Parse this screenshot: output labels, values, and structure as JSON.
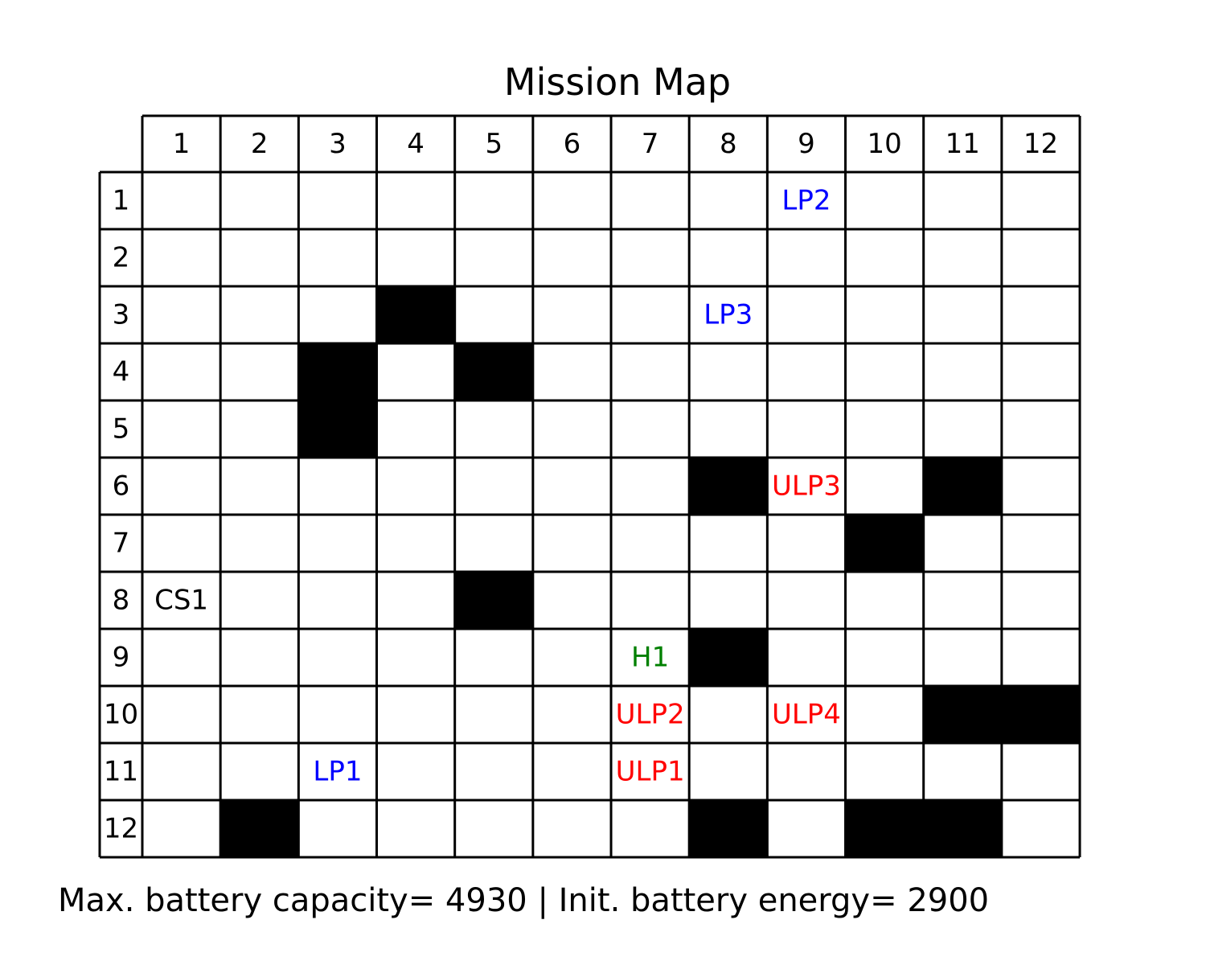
{
  "title": "Mission Map",
  "footer": "Max. battery capacity= 4930 | Init. battery energy= 2900",
  "grid": {
    "columns": [
      "1",
      "2",
      "3",
      "4",
      "5",
      "6",
      "7",
      "8",
      "9",
      "10",
      "11",
      "12"
    ],
    "rows": [
      "1",
      "2",
      "3",
      "4",
      "5",
      "6",
      "7",
      "8",
      "9",
      "10",
      "11",
      "12"
    ],
    "obstacles": [
      [
        3,
        4
      ],
      [
        4,
        3
      ],
      [
        4,
        5
      ],
      [
        5,
        3
      ],
      [
        6,
        8
      ],
      [
        6,
        11
      ],
      [
        7,
        10
      ],
      [
        8,
        5
      ],
      [
        9,
        8
      ],
      [
        10,
        11
      ],
      [
        10,
        12
      ],
      [
        12,
        2
      ],
      [
        12,
        8
      ],
      [
        12,
        10
      ],
      [
        12,
        11
      ]
    ],
    "markers": [
      {
        "label": "LP2",
        "row": 1,
        "col": 9,
        "color": "#0000ff"
      },
      {
        "label": "LP3",
        "row": 3,
        "col": 8,
        "color": "#0000ff"
      },
      {
        "label": "ULP3",
        "row": 6,
        "col": 9,
        "color": "#ff0000"
      },
      {
        "label": "CS1",
        "row": 8,
        "col": 1,
        "color": "#000000"
      },
      {
        "label": "H1",
        "row": 9,
        "col": 7,
        "color": "#008000"
      },
      {
        "label": "ULP2",
        "row": 10,
        "col": 7,
        "color": "#ff0000"
      },
      {
        "label": "ULP4",
        "row": 10,
        "col": 9,
        "color": "#ff0000"
      },
      {
        "label": "LP1",
        "row": 11,
        "col": 3,
        "color": "#0000ff"
      },
      {
        "label": "ULP1",
        "row": 11,
        "col": 7,
        "color": "#ff0000"
      }
    ]
  }
}
